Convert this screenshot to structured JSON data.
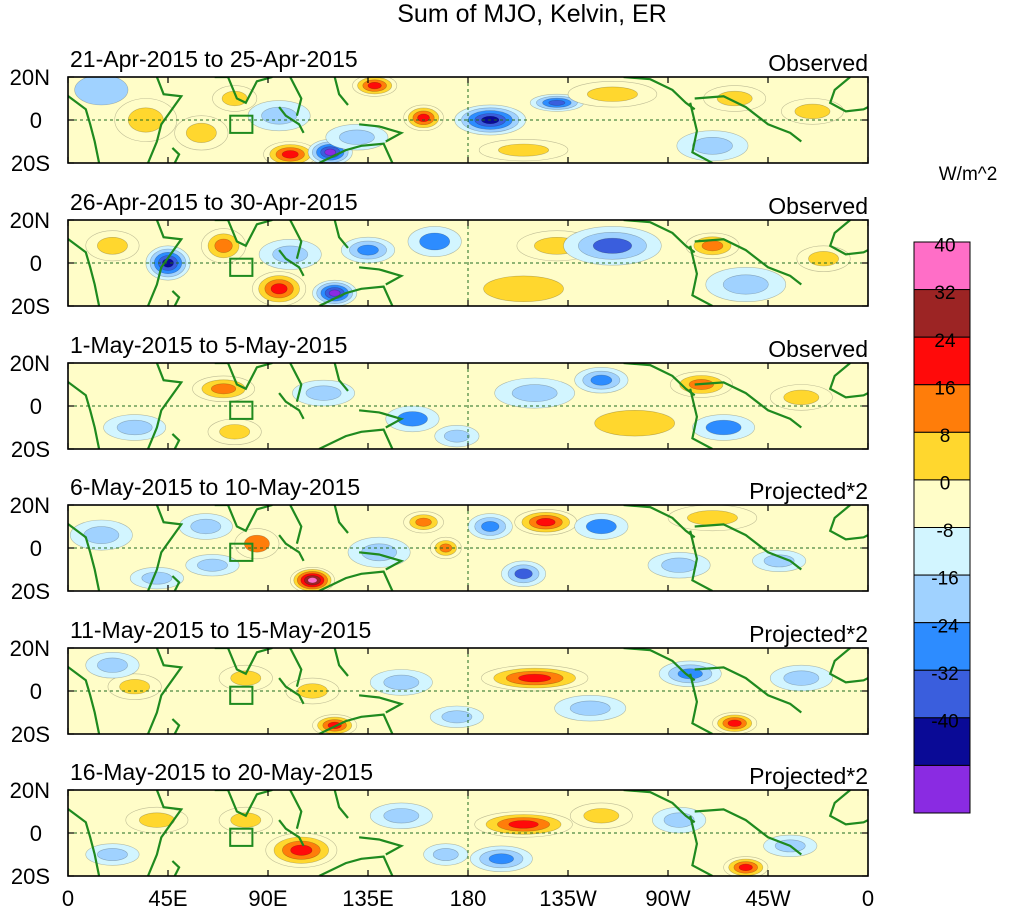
{
  "chart_data": {
    "type": "heatmap",
    "title": "Sum of MJO, Kelvin, ER",
    "units": "W/m^2",
    "x_ticks": [
      "0",
      "45E",
      "90E",
      "135E",
      "180",
      "135W",
      "90W",
      "45W",
      "0"
    ],
    "x_tick_lon": [
      0,
      45,
      90,
      135,
      180,
      225,
      270,
      315,
      360
    ],
    "xlim": [
      0,
      360
    ],
    "y_ticks": [
      "20N",
      "0",
      "20S"
    ],
    "y_tick_lat": [
      20,
      0,
      -20
    ],
    "ylim": [
      -20,
      20
    ],
    "colorbar": {
      "labels": [
        "40",
        "32",
        "24",
        "16",
        "8",
        "0",
        "-8",
        "-16",
        "-24",
        "-32",
        "-40"
      ],
      "colors": [
        "#ff6ec7",
        "#9c2424",
        "#ff0a0a",
        "#ff7d0a",
        "#ffd72e",
        "#fffdc8",
        "#d2f5ff",
        "#a0d2ff",
        "#2d8cff",
        "#3a5edd",
        "#0a0a96",
        "#8a2be2"
      ]
    },
    "panels": [
      {
        "period": "21-Apr-2015 to 25-Apr-2015",
        "type_label": "Observed",
        "anomalies": [
          {
            "lon": 35,
            "lat": 0,
            "value": 12,
            "rx": 14,
            "ry": 10
          },
          {
            "lon": 15,
            "lat": 14,
            "value": -8,
            "rx": 12,
            "ry": 7
          },
          {
            "lon": 60,
            "lat": -6,
            "value": 10,
            "rx": 12,
            "ry": 8
          },
          {
            "lon": 75,
            "lat": 10,
            "value": 12,
            "rx": 10,
            "ry": 6
          },
          {
            "lon": 100,
            "lat": -16,
            "value": 28,
            "rx": 12,
            "ry": 6
          },
          {
            "lon": 118,
            "lat": -15,
            "value": -40,
            "rx": 10,
            "ry": 6
          },
          {
            "lon": 95,
            "lat": 2,
            "value": -14,
            "rx": 14,
            "ry": 7
          },
          {
            "lon": 138,
            "lat": 16,
            "value": 26,
            "rx": 10,
            "ry": 5
          },
          {
            "lon": 130,
            "lat": -8,
            "value": -10,
            "rx": 14,
            "ry": 6
          },
          {
            "lon": 160,
            "lat": 1,
            "value": 26,
            "rx": 9,
            "ry": 6
          },
          {
            "lon": 190,
            "lat": 0,
            "value": -36,
            "rx": 16,
            "ry": 7
          },
          {
            "lon": 220,
            "lat": 8,
            "value": -28,
            "rx": 12,
            "ry": 4
          },
          {
            "lon": 205,
            "lat": -14,
            "value": 10,
            "rx": 20,
            "ry": 5
          },
          {
            "lon": 245,
            "lat": 12,
            "value": 12,
            "rx": 20,
            "ry": 6
          },
          {
            "lon": 290,
            "lat": -12,
            "value": -14,
            "rx": 16,
            "ry": 7
          },
          {
            "lon": 300,
            "lat": 10,
            "value": 14,
            "rx": 14,
            "ry": 6
          },
          {
            "lon": 335,
            "lat": 4,
            "value": 10,
            "rx": 14,
            "ry": 6
          }
        ]
      },
      {
        "period": "26-Apr-2015 to 30-Apr-2015",
        "type_label": "Observed",
        "anomalies": [
          {
            "lon": 45,
            "lat": 0,
            "value": -34,
            "rx": 10,
            "ry": 8
          },
          {
            "lon": 20,
            "lat": 8,
            "value": 12,
            "rx": 12,
            "ry": 7
          },
          {
            "lon": 70,
            "lat": 8,
            "value": 22,
            "rx": 10,
            "ry": 8
          },
          {
            "lon": 95,
            "lat": -12,
            "value": 30,
            "rx": 12,
            "ry": 8
          },
          {
            "lon": 120,
            "lat": -14,
            "value": -40,
            "rx": 10,
            "ry": 6
          },
          {
            "lon": 100,
            "lat": 4,
            "value": -12,
            "rx": 14,
            "ry": 7
          },
          {
            "lon": 135,
            "lat": 6,
            "value": -22,
            "rx": 12,
            "ry": 6
          },
          {
            "lon": 165,
            "lat": 10,
            "value": -16,
            "rx": 12,
            "ry": 7
          },
          {
            "lon": 220,
            "lat": 8,
            "value": 12,
            "rx": 18,
            "ry": 7
          },
          {
            "lon": 245,
            "lat": 8,
            "value": -24,
            "rx": 22,
            "ry": 9
          },
          {
            "lon": 290,
            "lat": 8,
            "value": 18,
            "rx": 12,
            "ry": 6
          },
          {
            "lon": 305,
            "lat": -10,
            "value": -14,
            "rx": 18,
            "ry": 8
          },
          {
            "lon": 205,
            "lat": -12,
            "value": 8,
            "rx": 18,
            "ry": 6
          },
          {
            "lon": 340,
            "lat": 2,
            "value": 10,
            "rx": 12,
            "ry": 6
          }
        ]
      },
      {
        "period": "1-May-2015 to 5-May-2015",
        "type_label": "Observed",
        "anomalies": [
          {
            "lon": 70,
            "lat": 8,
            "value": 20,
            "rx": 14,
            "ry": 6
          },
          {
            "lon": 75,
            "lat": -12,
            "value": 12,
            "rx": 12,
            "ry": 6
          },
          {
            "lon": 30,
            "lat": -10,
            "value": -12,
            "rx": 14,
            "ry": 6
          },
          {
            "lon": 115,
            "lat": 6,
            "value": -14,
            "rx": 14,
            "ry": 6
          },
          {
            "lon": 155,
            "lat": -6,
            "value": -16,
            "rx": 12,
            "ry": 6
          },
          {
            "lon": 175,
            "lat": -14,
            "value": -12,
            "rx": 10,
            "ry": 5
          },
          {
            "lon": 210,
            "lat": 6,
            "value": -10,
            "rx": 18,
            "ry": 7
          },
          {
            "lon": 240,
            "lat": 12,
            "value": -18,
            "rx": 12,
            "ry": 6
          },
          {
            "lon": 285,
            "lat": 10,
            "value": 18,
            "rx": 14,
            "ry": 6
          },
          {
            "lon": 295,
            "lat": -10,
            "value": -16,
            "rx": 14,
            "ry": 6
          },
          {
            "lon": 255,
            "lat": -8,
            "value": 8,
            "rx": 18,
            "ry": 6
          },
          {
            "lon": 330,
            "lat": 4,
            "value": 10,
            "rx": 14,
            "ry": 6
          }
        ]
      },
      {
        "period": "6-May-2015 to 10-May-2015",
        "type_label": "Projected*2",
        "anomalies": [
          {
            "lon": 110,
            "lat": -15,
            "value": 44,
            "rx": 10,
            "ry": 6
          },
          {
            "lon": 85,
            "lat": 2,
            "value": 16,
            "rx": 10,
            "ry": 7
          },
          {
            "lon": 62,
            "lat": 10,
            "value": -14,
            "rx": 12,
            "ry": 6
          },
          {
            "lon": 65,
            "lat": -8,
            "value": -12,
            "rx": 12,
            "ry": 5
          },
          {
            "lon": 15,
            "lat": 6,
            "value": -14,
            "rx": 14,
            "ry": 7
          },
          {
            "lon": 40,
            "lat": -14,
            "value": -10,
            "rx": 12,
            "ry": 5
          },
          {
            "lon": 140,
            "lat": -2,
            "value": -14,
            "rx": 14,
            "ry": 7
          },
          {
            "lon": 160,
            "lat": 12,
            "value": 22,
            "rx": 9,
            "ry": 5
          },
          {
            "lon": 170,
            "lat": 0,
            "value": 20,
            "rx": 7,
            "ry": 5
          },
          {
            "lon": 190,
            "lat": 10,
            "value": -22,
            "rx": 10,
            "ry": 6
          },
          {
            "lon": 205,
            "lat": -12,
            "value": -24,
            "rx": 10,
            "ry": 6
          },
          {
            "lon": 215,
            "lat": 12,
            "value": 26,
            "rx": 14,
            "ry": 6
          },
          {
            "lon": 240,
            "lat": 10,
            "value": -16,
            "rx": 12,
            "ry": 6
          },
          {
            "lon": 290,
            "lat": 14,
            "value": 14,
            "rx": 20,
            "ry": 6
          },
          {
            "lon": 275,
            "lat": -8,
            "value": -12,
            "rx": 14,
            "ry": 6
          },
          {
            "lon": 320,
            "lat": -6,
            "value": -10,
            "rx": 12,
            "ry": 5
          }
        ]
      },
      {
        "period": "11-May-2015 to 15-May-2015",
        "type_label": "Projected*2",
        "anomalies": [
          {
            "lon": 120,
            "lat": -16,
            "value": 30,
            "rx": 10,
            "ry": 5
          },
          {
            "lon": 110,
            "lat": 0,
            "value": 12,
            "rx": 12,
            "ry": 6
          },
          {
            "lon": 80,
            "lat": 6,
            "value": 10,
            "rx": 12,
            "ry": 6
          },
          {
            "lon": 30,
            "lat": 2,
            "value": 10,
            "rx": 12,
            "ry": 6
          },
          {
            "lon": 20,
            "lat": 12,
            "value": -14,
            "rx": 12,
            "ry": 6
          },
          {
            "lon": 150,
            "lat": 4,
            "value": -14,
            "rx": 14,
            "ry": 6
          },
          {
            "lon": 175,
            "lat": -12,
            "value": -10,
            "rx": 12,
            "ry": 5
          },
          {
            "lon": 210,
            "lat": 6,
            "value": 26,
            "rx": 24,
            "ry": 6
          },
          {
            "lon": 235,
            "lat": -8,
            "value": -12,
            "rx": 16,
            "ry": 6
          },
          {
            "lon": 280,
            "lat": 8,
            "value": -18,
            "rx": 14,
            "ry": 6
          },
          {
            "lon": 300,
            "lat": -15,
            "value": 28,
            "rx": 10,
            "ry": 5
          },
          {
            "lon": 330,
            "lat": 6,
            "value": -10,
            "rx": 14,
            "ry": 6
          }
        ]
      },
      {
        "period": "16-May-2015 to 20-May-2015",
        "type_label": "Projected*2",
        "anomalies": [
          {
            "lon": 105,
            "lat": -8,
            "value": 30,
            "rx": 16,
            "ry": 8
          },
          {
            "lon": 80,
            "lat": 6,
            "value": 10,
            "rx": 12,
            "ry": 6
          },
          {
            "lon": 40,
            "lat": 6,
            "value": 10,
            "rx": 14,
            "ry": 6
          },
          {
            "lon": 20,
            "lat": -10,
            "value": -10,
            "rx": 12,
            "ry": 5
          },
          {
            "lon": 150,
            "lat": 8,
            "value": -12,
            "rx": 14,
            "ry": 6
          },
          {
            "lon": 170,
            "lat": -10,
            "value": -10,
            "rx": 10,
            "ry": 5
          },
          {
            "lon": 205,
            "lat": 4,
            "value": 26,
            "rx": 22,
            "ry": 6
          },
          {
            "lon": 195,
            "lat": -12,
            "value": -22,
            "rx": 14,
            "ry": 6
          },
          {
            "lon": 240,
            "lat": 8,
            "value": 12,
            "rx": 14,
            "ry": 6
          },
          {
            "lon": 275,
            "lat": 6,
            "value": -14,
            "rx": 12,
            "ry": 6
          },
          {
            "lon": 305,
            "lat": -16,
            "value": 30,
            "rx": 10,
            "ry": 5
          },
          {
            "lon": 325,
            "lat": -6,
            "value": -10,
            "rx": 12,
            "ry": 5
          }
        ]
      }
    ]
  }
}
